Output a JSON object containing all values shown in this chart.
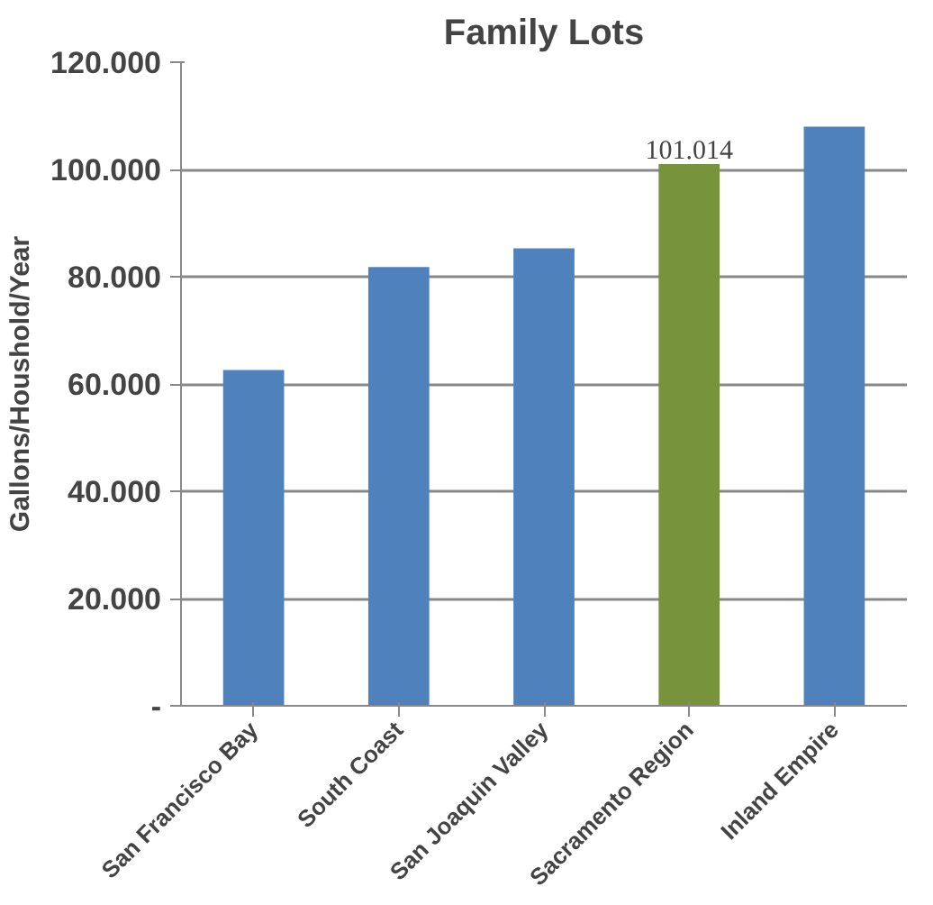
{
  "chart_data": {
    "type": "bar",
    "title": "Family Lots",
    "ylabel": "Gallons/Houshold/Year",
    "categories": [
      "San Francisco Bay",
      "South Coast",
      "San Joaquin Valley",
      "Sacramento Region",
      "Inland Empire"
    ],
    "values": [
      62600,
      81800,
      85300,
      101014,
      108000
    ],
    "colors": [
      "#4f81bd",
      "#4f81bd",
      "#4f81bd",
      "#77933c",
      "#4f81bd"
    ],
    "value_labels": [
      null,
      null,
      null,
      "101.014",
      null
    ],
    "ylim": [
      0,
      120000
    ],
    "yticks": [
      {
        "value": 0,
        "label": "-"
      },
      {
        "value": 20000,
        "label": "20.000"
      },
      {
        "value": 40000,
        "label": "40.000"
      },
      {
        "value": 60000,
        "label": "60.000"
      },
      {
        "value": 80000,
        "label": "80.000"
      },
      {
        "value": 100000,
        "label": "100.000"
      },
      {
        "value": 120000,
        "label": "120.000"
      }
    ],
    "grid": "y"
  }
}
